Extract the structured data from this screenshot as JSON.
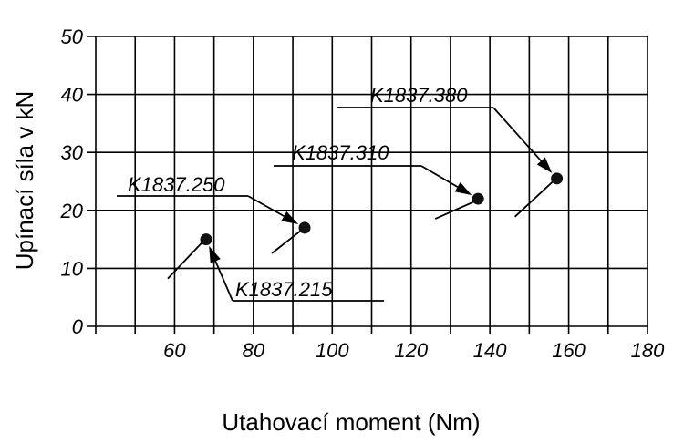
{
  "chart_data": {
    "type": "scatter",
    "title": "",
    "xlabel": "Utahovací moment (Nm)",
    "ylabel": "Upínací síla v kN",
    "xlim": [
      40,
      180
    ],
    "ylim": [
      0,
      50
    ],
    "x_ticks": [
      "60",
      "80",
      "100",
      "120",
      "140",
      "160",
      "180"
    ],
    "y_ticks": [
      "0",
      "10",
      "20",
      "30",
      "40",
      "50"
    ],
    "grid": true,
    "points": [
      {
        "label": "K1837.215",
        "x": 68,
        "y": 15
      },
      {
        "label": "K1837.250",
        "x": 93,
        "y": 17
      },
      {
        "label": "K1837.310",
        "x": 137,
        "y": 22
      },
      {
        "label": "K1837.380",
        "x": 157,
        "y": 25.5
      }
    ]
  }
}
